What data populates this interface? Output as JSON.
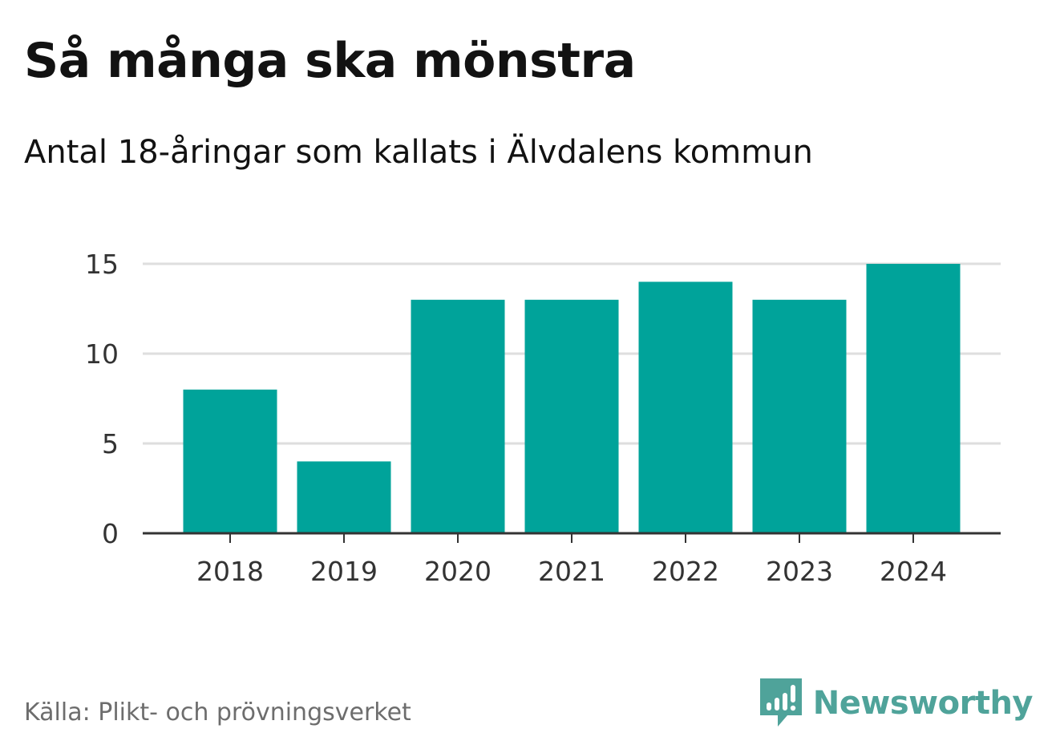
{
  "title": "Så många ska mönstra",
  "subtitle": "Antal 18-åringar som kallats i Älvdalens kommun",
  "source": "Källa: Plikt- och prövningsverket",
  "brand": {
    "name": "Newsworthy",
    "icon": "newsworthy-logo-icon",
    "color": "#4fa39a"
  },
  "colors": {
    "bar": "#00a39a",
    "grid": "#dedede",
    "axis": "#333333",
    "tick_text": "#333333"
  },
  "chart_data": {
    "type": "bar",
    "title": "Så många ska mönstra",
    "subtitle": "Antal 18-åringar som kallats i Älvdalens kommun",
    "categories": [
      "2018",
      "2019",
      "2020",
      "2021",
      "2022",
      "2023",
      "2024"
    ],
    "values": [
      8,
      4,
      13,
      13,
      14,
      13,
      15
    ],
    "xlabel": "",
    "ylabel": "",
    "ylim": [
      0,
      15
    ],
    "yticks": [
      0,
      5,
      10,
      15
    ],
    "grid": true,
    "legend": "none"
  }
}
